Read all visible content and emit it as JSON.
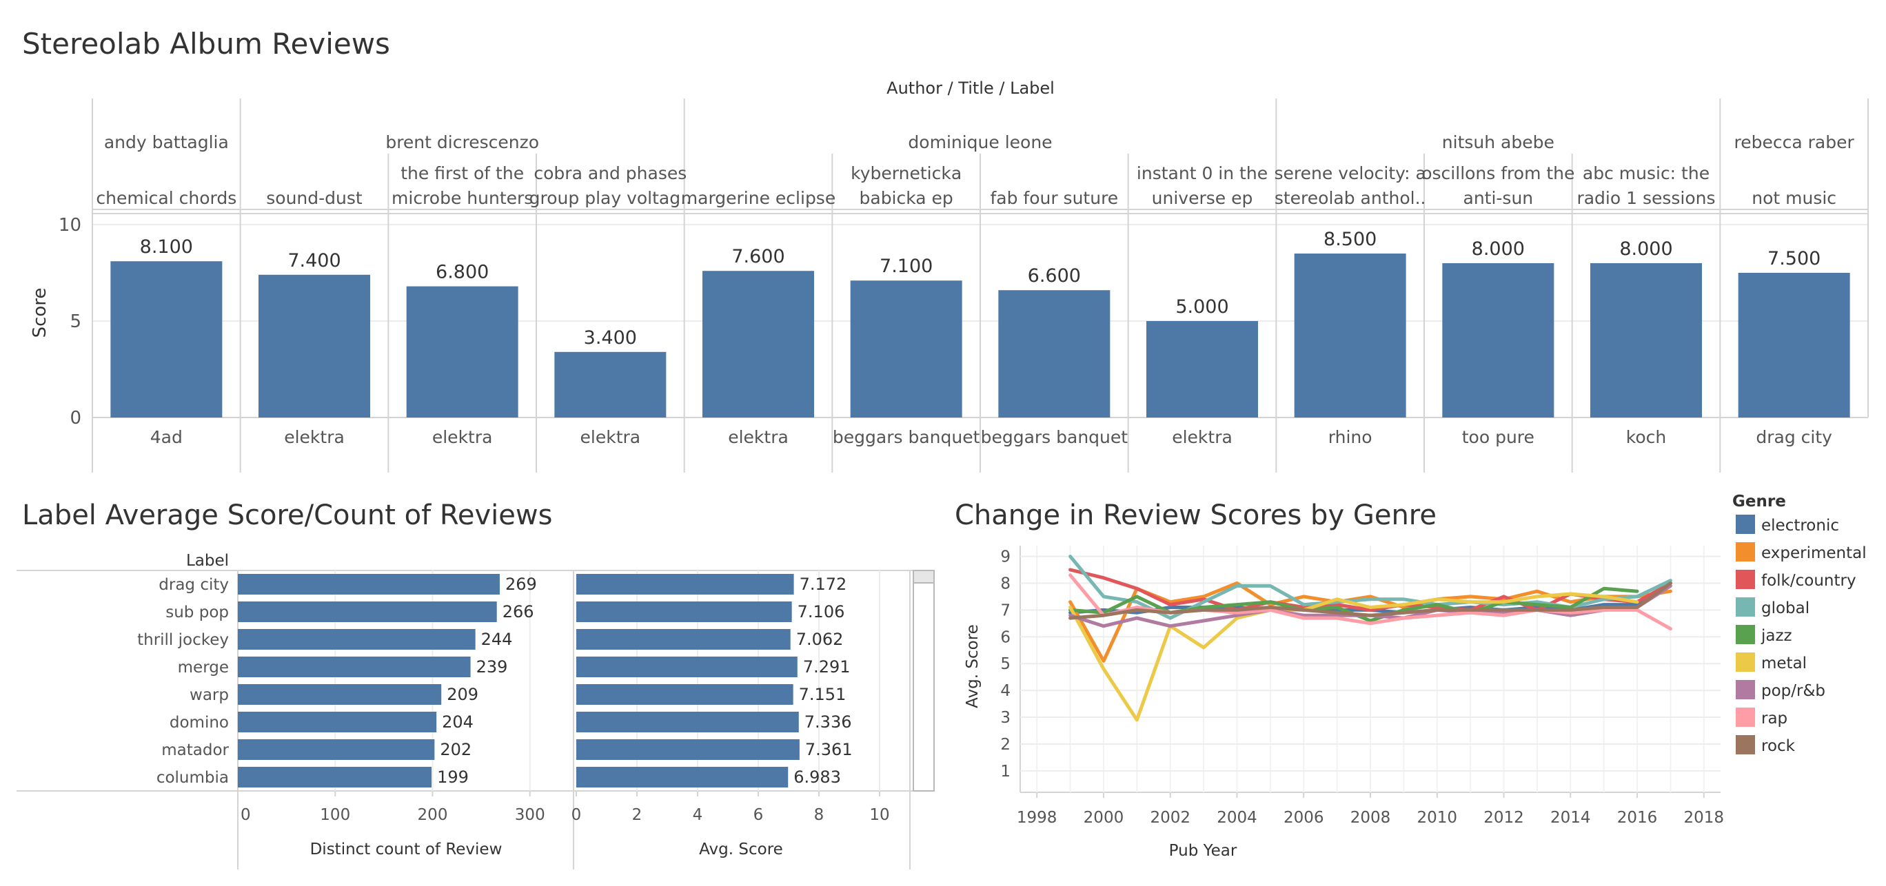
{
  "dashboard": {
    "title": "Stereolab Album Reviews"
  },
  "top_chart": {
    "header_title": "Author / Title / Label",
    "y_axis_label": "Score",
    "y_ticks": [
      "0",
      "5",
      "10"
    ]
  },
  "label_chart": {
    "title": "Label Average Score/Count of Reviews",
    "row_header": "Label",
    "count_axis_label": "Distinct count of Review",
    "avg_axis_label": "Avg. Score",
    "count_ticks": [
      "0",
      "100",
      "200",
      "300"
    ],
    "avg_ticks": [
      "0",
      "2",
      "4",
      "6",
      "8",
      "10"
    ]
  },
  "genre_chart": {
    "title": "Change in Review Scores by Genre",
    "x_axis_label": "Pub Year",
    "y_axis_label": "Avg. Score",
    "legend_title": "Genre",
    "x_ticks": [
      "1998",
      "2000",
      "2002",
      "2004",
      "2006",
      "2008",
      "2010",
      "2012",
      "2014",
      "2016",
      "2018"
    ],
    "y_ticks": [
      "1",
      "2",
      "3",
      "4",
      "5",
      "6",
      "7",
      "8",
      "9"
    ]
  },
  "chart_data": [
    {
      "type": "bar",
      "title": "",
      "ylabel": "Score",
      "ylim": [
        0,
        10
      ],
      "authors": [
        {
          "name": "andy battaglia",
          "albums": [
            {
              "title": [
                "chemical chords"
              ],
              "label": "4ad",
              "score": 8.1,
              "score_label": "8.100"
            }
          ]
        },
        {
          "name": "brent dicrescenzo",
          "albums": [
            {
              "title": [
                "sound-dust"
              ],
              "label": "elektra",
              "score": 7.4,
              "score_label": "7.400"
            },
            {
              "title": [
                "the first of the",
                "microbe hunters"
              ],
              "label": "elektra",
              "score": 6.8,
              "score_label": "6.800"
            },
            {
              "title": [
                "cobra and phases",
                "group play voltag.."
              ],
              "label": "elektra",
              "score": 3.4,
              "score_label": "3.400"
            }
          ]
        },
        {
          "name": "dominique leone",
          "albums": [
            {
              "title": [
                "margerine eclipse"
              ],
              "label": "elektra",
              "score": 7.6,
              "score_label": "7.600"
            },
            {
              "title": [
                "kybernetickа",
                "babicka ep"
              ],
              "label": "beggars banquet",
              "score": 7.1,
              "score_label": "7.100"
            },
            {
              "title": [
                "fab four suture"
              ],
              "label": "beggars banquet",
              "score": 6.6,
              "score_label": "6.600"
            },
            {
              "title": [
                "instant 0 in the",
                "universe ep"
              ],
              "label": "elektra",
              "score": 5.0,
              "score_label": "5.000"
            }
          ]
        },
        {
          "name": "nitsuh abebe",
          "albums": [
            {
              "title": [
                "serene velocity: a",
                "stereolab anthol.."
              ],
              "label": "rhino",
              "score": 8.5,
              "score_label": "8.500"
            },
            {
              "title": [
                "oscillons from the",
                "anti-sun"
              ],
              "label": "too pure",
              "score": 8.0,
              "score_label": "8.000"
            },
            {
              "title": [
                "abc music: the",
                "radio 1 sessions"
              ],
              "label": "koch",
              "score": 8.0,
              "score_label": "8.000"
            }
          ]
        },
        {
          "name": "rebecca raber",
          "albums": [
            {
              "title": [
                "not music"
              ],
              "label": "drag city",
              "score": 7.5,
              "score_label": "7.500"
            }
          ]
        }
      ]
    },
    {
      "type": "bar",
      "title": "Label Average Score/Count of Reviews",
      "categories": [
        "drag city",
        "sub pop",
        "thrill jockey",
        "merge",
        "warp",
        "domino",
        "matador",
        "columbia"
      ],
      "series": [
        {
          "name": "Distinct count of Review",
          "values": [
            269,
            266,
            244,
            239,
            209,
            204,
            202,
            199
          ],
          "labels": [
            "269",
            "266",
            "244",
            "239",
            "209",
            "204",
            "202",
            "199"
          ],
          "xlim": [
            0,
            320
          ]
        },
        {
          "name": "Avg. Score",
          "values": [
            7.172,
            7.106,
            7.062,
            7.291,
            7.151,
            7.336,
            7.361,
            6.983
          ],
          "labels": [
            "7.172",
            "7.106",
            "7.062",
            "7.291",
            "7.151",
            "7.336",
            "7.361",
            "6.983"
          ],
          "xlim": [
            0,
            11
          ]
        }
      ]
    },
    {
      "type": "line",
      "title": "Change in Review Scores by Genre",
      "xlabel": "Pub Year",
      "ylabel": "Avg. Score",
      "xlim": [
        1997.5,
        2018.5
      ],
      "ylim": [
        0.2,
        9.4
      ],
      "legend": "right",
      "series": [
        {
          "name": "electronic",
          "color": "#4e79a7",
          "x": [
            1999,
            2000,
            2001,
            2002,
            2003,
            2004,
            2005,
            2006,
            2007,
            2008,
            2009,
            2010,
            2011,
            2012,
            2013,
            2014,
            2015,
            2016,
            2017
          ],
          "y": [
            6.9,
            7.0,
            6.9,
            7.1,
            7.1,
            7.1,
            7.0,
            7.1,
            7.0,
            7.0,
            6.9,
            7.0,
            7.1,
            7.0,
            7.1,
            7.0,
            7.2,
            7.2,
            8.0
          ]
        },
        {
          "name": "experimental",
          "color": "#f28e2b",
          "x": [
            1999,
            2000,
            2001,
            2002,
            2003,
            2004,
            2005,
            2006,
            2007,
            2008,
            2009,
            2010,
            2011,
            2012,
            2013,
            2014,
            2015,
            2016,
            2017
          ],
          "y": [
            7.3,
            5.1,
            7.8,
            7.3,
            7.5,
            8.0,
            7.2,
            7.5,
            7.3,
            7.5,
            7.1,
            7.4,
            7.5,
            7.4,
            7.7,
            7.3,
            7.5,
            7.5,
            7.7
          ]
        },
        {
          "name": "folk/country",
          "color": "#e15759",
          "x": [
            1999,
            2000,
            2001,
            2002,
            2003,
            2004,
            2005,
            2006,
            2007,
            2008,
            2009,
            2010,
            2011,
            2012,
            2013,
            2014,
            2015,
            2016,
            2017
          ],
          "y": [
            8.5,
            8.2,
            7.8,
            7.2,
            7.4,
            7.0,
            7.3,
            7.1,
            7.2,
            7.0,
            7.2,
            7.1,
            7.0,
            7.5,
            7.0,
            7.6,
            7.4,
            7.3,
            8.0
          ]
        },
        {
          "name": "global",
          "color": "#76b7b2",
          "x": [
            1999,
            2000,
            2001,
            2002,
            2003,
            2004,
            2005,
            2006,
            2007,
            2008,
            2009,
            2010,
            2011,
            2012,
            2013,
            2014,
            2015,
            2016,
            2017
          ],
          "y": [
            9.0,
            7.5,
            7.3,
            6.7,
            7.3,
            7.9,
            7.9,
            7.2,
            7.3,
            7.4,
            7.4,
            7.2,
            7.3,
            7.2,
            7.3,
            7.1,
            7.4,
            7.5,
            8.1
          ]
        },
        {
          "name": "jazz",
          "color": "#59a14f",
          "x": [
            1999,
            2000,
            2001,
            2002,
            2003,
            2004,
            2005,
            2006,
            2007,
            2008,
            2009,
            2010,
            2011,
            2012,
            2013,
            2014,
            2015,
            2016
          ],
          "y": [
            7.0,
            6.9,
            7.5,
            6.9,
            7.1,
            7.2,
            7.3,
            7.0,
            7.1,
            6.6,
            7.0,
            7.2,
            6.9,
            7.3,
            7.2,
            7.1,
            7.8,
            7.7
          ]
        },
        {
          "name": "metal",
          "color": "#edc948",
          "x": [
            1999,
            2000,
            2001,
            2002,
            2003,
            2004,
            2005,
            2006,
            2007,
            2008,
            2009,
            2010,
            2011,
            2012,
            2013,
            2014,
            2015,
            2016
          ],
          "y": [
            7.1,
            4.8,
            2.9,
            6.4,
            5.6,
            6.7,
            7.0,
            7.0,
            7.4,
            7.1,
            7.2,
            7.4,
            7.3,
            7.3,
            7.5,
            7.6,
            7.5,
            7.3
          ]
        },
        {
          "name": "pop/r&b",
          "color": "#b07aa1",
          "x": [
            1999,
            2000,
            2001,
            2002,
            2003,
            2004,
            2005,
            2006,
            2007,
            2008,
            2009,
            2010,
            2011,
            2012,
            2013,
            2014,
            2015,
            2016,
            2017
          ],
          "y": [
            6.8,
            6.4,
            6.7,
            6.4,
            6.6,
            6.8,
            7.0,
            6.8,
            6.8,
            6.8,
            6.7,
            7.0,
            6.9,
            6.9,
            7.0,
            6.8,
            7.0,
            7.1,
            7.9
          ]
        },
        {
          "name": "rap",
          "color": "#ff9da7",
          "x": [
            1999,
            2000,
            2001,
            2002,
            2003,
            2004,
            2005,
            2006,
            2007,
            2008,
            2009,
            2010,
            2011,
            2012,
            2013,
            2014,
            2015,
            2016,
            2017
          ],
          "y": [
            8.3,
            6.8,
            7.1,
            6.9,
            7.0,
            6.9,
            7.0,
            6.7,
            6.7,
            6.5,
            6.7,
            6.8,
            6.9,
            6.8,
            7.0,
            6.9,
            7.0,
            7.0,
            6.3
          ]
        },
        {
          "name": "rock",
          "color": "#9c755f",
          "x": [
            1999,
            2000,
            2001,
            2002,
            2003,
            2004,
            2005,
            2006,
            2007,
            2008,
            2009,
            2010,
            2011,
            2012,
            2013,
            2014,
            2015,
            2016,
            2017
          ],
          "y": [
            6.7,
            6.8,
            7.0,
            6.9,
            7.0,
            7.0,
            7.1,
            7.0,
            6.9,
            6.8,
            6.9,
            7.0,
            7.0,
            7.0,
            7.0,
            7.0,
            7.1,
            7.1,
            8.0
          ]
        }
      ]
    }
  ]
}
